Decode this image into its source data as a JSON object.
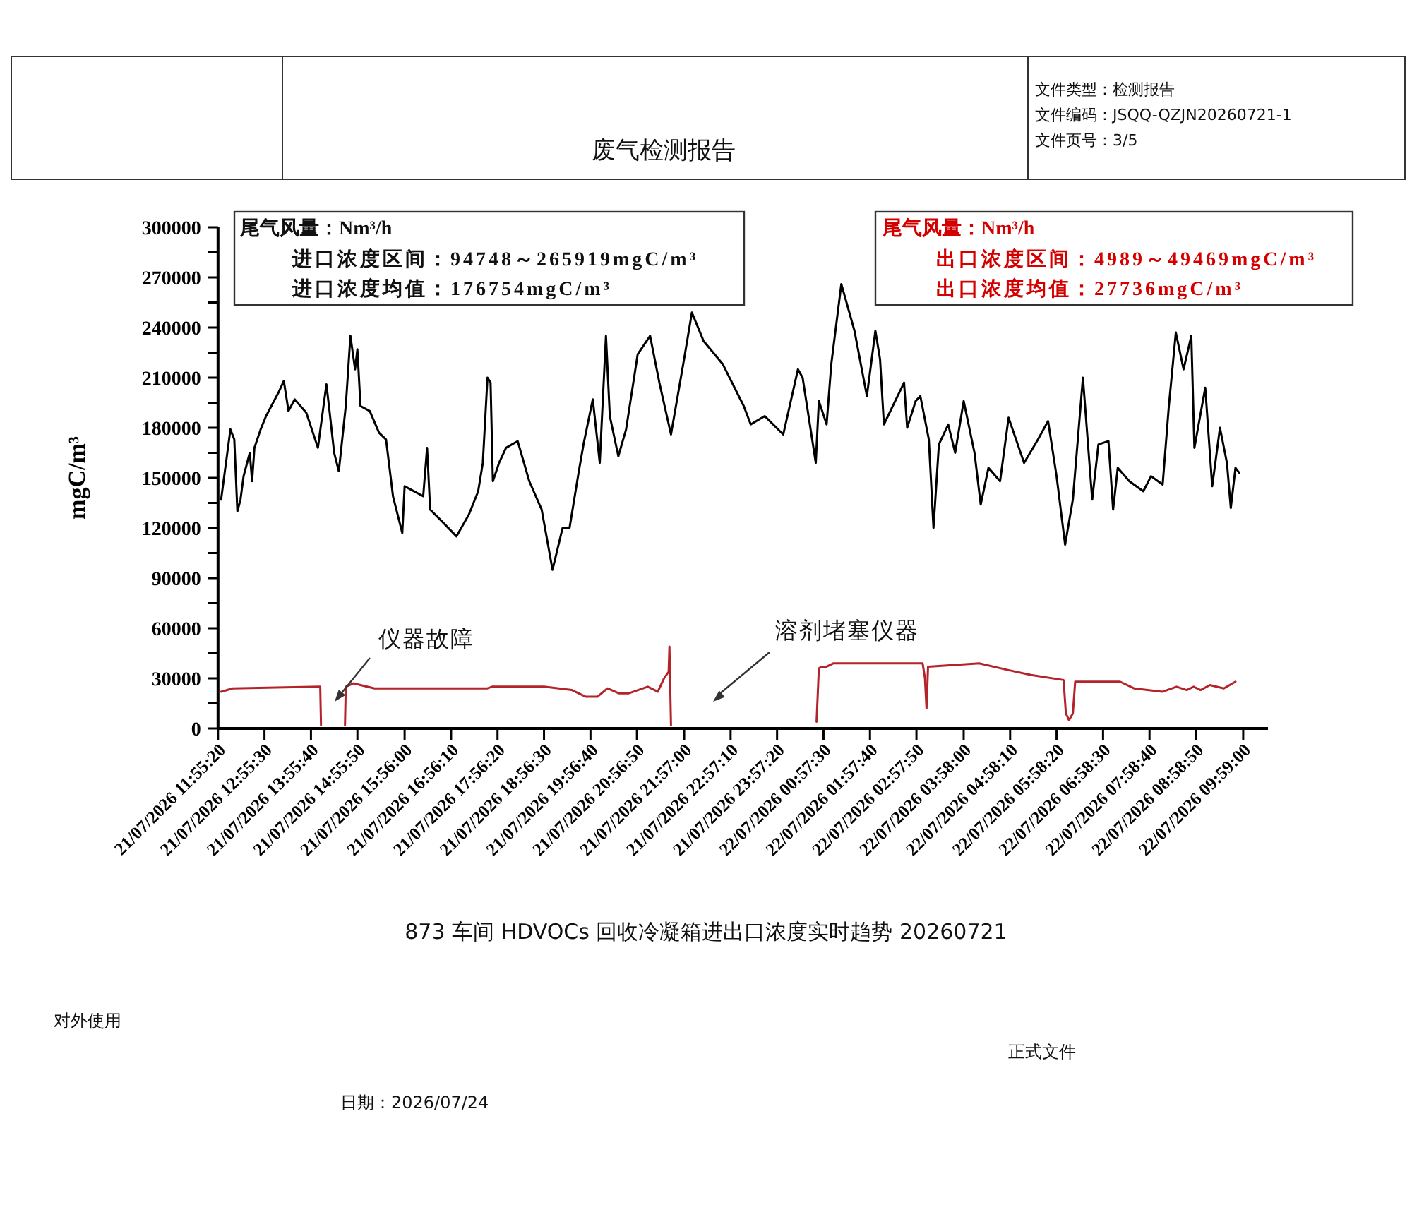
{
  "chart_data": {
    "type": "line",
    "title": "废气检测报告",
    "ylabel": "mgC/m³",
    "xlim": [
      "2026-07-21T11:55",
      "2026-07-22T10:31"
    ],
    "xticks": [
      {
        "value": "2026-07-21T11:55",
        "label": "21/07/2026 11:55:20"
      },
      {
        "value": "2026-07-21T12:55",
        "label": "21/07/2026 12:55:30"
      },
      {
        "value": "2026-07-21T13:55",
        "label": "21/07/2026 13:55:40"
      },
      {
        "value": "2026-07-21T14:55",
        "label": "21/07/2026 14:55:50"
      },
      {
        "value": "2026-07-21T15:56",
        "label": "21/07/2026 15:56:00"
      },
      {
        "value": "2026-07-21T16:56",
        "label": "21/07/2026 16:56:10"
      },
      {
        "value": "2026-07-21T17:56",
        "label": "21/07/2026 17:56:20"
      },
      {
        "value": "2026-07-21T18:56",
        "label": "21/07/2026 18:56:30"
      },
      {
        "value": "2026-07-21T19:56",
        "label": "21/07/2026 19:56:40"
      },
      {
        "value": "2026-07-21T20:56",
        "label": "21/07/2026 20:56:50"
      },
      {
        "value": "2026-07-21T21:57",
        "label": "21/07/2026 21:57:00"
      },
      {
        "value": "2026-07-21T22:57",
        "label": "21/07/2026 22:57:10"
      },
      {
        "value": "2026-07-21T23:57",
        "label": "21/07/2026 23:57:20"
      },
      {
        "value": "2026-07-22T00:57",
        "label": "22/07/2026 00:57:30"
      },
      {
        "value": "2026-07-22T01:57",
        "label": "22/07/2026 01:57:40"
      },
      {
        "value": "2026-07-22T02:57",
        "label": "22/07/2026 02:57:50"
      },
      {
        "value": "2026-07-22T03:58",
        "label": "22/07/2026 03:58:00"
      },
      {
        "value": "2026-07-22T04:58",
        "label": "22/07/2026 04:58:10"
      },
      {
        "value": "2026-07-22T05:58",
        "label": "22/07/2026 05:58:20"
      },
      {
        "value": "2026-07-22T06:58",
        "label": "22/07/2026 06:58:30"
      },
      {
        "value": "2026-07-22T07:58",
        "label": "22/07/2026 07:58:40"
      },
      {
        "value": "2026-07-22T08:58",
        "label": "22/07/2026 08:58:50"
      },
      {
        "value": "2026-07-22T09:59",
        "label": "22/07/2026 09:59:00"
      }
    ],
    "ylim": [
      0,
      300000
    ],
    "yticks": [
      0,
      {
        "value": 15000,
        "label": null
      },
      30000,
      {
        "value": 45000,
        "label": null
      },
      60000,
      {
        "value": 75000,
        "label": null
      },
      90000,
      {
        "value": 105000,
        "label": null
      },
      120000,
      {
        "value": 135000,
        "label": null
      },
      150000,
      {
        "value": 165000,
        "label": null
      },
      180000,
      {
        "value": 195000,
        "label": null
      },
      210000,
      {
        "value": 225000,
        "label": null
      },
      240000,
      {
        "value": 255000,
        "label": null
      },
      270000,
      {
        "value": 285000,
        "label": null
      },
      300000
    ],
    "series": [
      {
        "color": "#000000",
        "x": [
          "2026-07-21T11:59",
          "2026-07-21T12:11",
          "2026-07-21T12:16",
          "2026-07-21T12:20",
          "2026-07-21T12:24",
          "2026-07-21T12:28",
          "2026-07-21T12:36",
          "2026-07-21T12:39",
          "2026-07-21T12:42",
          "2026-07-21T12:50",
          "2026-07-21T12:57",
          "2026-07-21T13:13",
          "2026-07-21T13:20",
          "2026-07-21T13:26",
          "2026-07-21T13:34",
          "2026-07-21T13:49",
          "2026-07-21T14:04",
          "2026-07-21T14:15",
          "2026-07-21T14:19",
          "2026-07-21T14:25",
          "2026-07-21T14:31",
          "2026-07-21T14:40",
          "2026-07-21T14:46",
          "2026-07-21T14:52",
          "2026-07-21T14:55",
          "2026-07-21T14:59",
          "2026-07-21T15:11",
          "2026-07-21T15:23",
          "2026-07-21T15:32",
          "2026-07-21T15:41",
          "2026-07-21T15:53",
          "2026-07-21T15:56",
          "2026-07-21T16:08",
          "2026-07-21T16:20",
          "2026-07-21T16:25",
          "2026-07-21T16:29",
          "2026-07-21T16:42",
          "2026-07-21T17:03",
          "2026-07-21T17:19",
          "2026-07-21T17:31",
          "2026-07-21T17:37",
          "2026-07-21T17:43",
          "2026-07-21T17:47",
          "2026-07-21T17:50",
          "2026-07-21T17:58",
          "2026-07-21T18:07",
          "2026-07-21T18:22",
          "2026-07-21T18:37",
          "2026-07-21T18:53",
          "2026-07-21T19:07",
          "2026-07-21T19:20",
          "2026-07-21T19:29",
          "2026-07-21T19:41",
          "2026-07-21T19:47",
          "2026-07-21T19:59",
          "2026-07-21T20:08",
          "2026-07-21T20:16",
          "2026-07-21T20:21",
          "2026-07-21T20:32",
          "2026-07-21T20:42",
          "2026-07-21T20:57",
          "2026-07-21T21:13",
          "2026-07-21T21:25",
          "2026-07-21T21:40",
          "2026-07-21T21:58",
          "2026-07-21T22:07",
          "2026-07-21T22:22",
          "2026-07-21T22:47",
          "2026-07-21T23:14",
          "2026-07-21T23:23",
          "2026-07-21T23:41",
          "2026-07-22T00:05",
          "2026-07-22T00:24",
          "2026-07-22T00:30",
          "2026-07-22T00:47",
          "2026-07-22T00:51",
          "2026-07-22T01:01",
          "2026-07-22T01:07",
          "2026-07-22T01:20",
          "2026-07-22T01:37",
          "2026-07-22T01:53",
          "2026-07-22T02:04",
          "2026-07-22T02:10",
          "2026-07-22T02:15",
          "2026-07-22T02:41",
          "2026-07-22T02:45",
          "2026-07-22T02:56",
          "2026-07-22T03:02",
          "2026-07-22T03:13",
          "2026-07-22T03:19",
          "2026-07-22T03:26",
          "2026-07-22T03:38",
          "2026-07-22T03:47",
          "2026-07-22T03:58",
          "2026-07-22T04:12",
          "2026-07-22T04:20",
          "2026-07-22T04:30",
          "2026-07-22T04:45",
          "2026-07-22T04:56",
          "2026-07-22T05:16",
          "2026-07-22T05:34",
          "2026-07-22T05:47",
          "2026-07-22T05:58",
          "2026-07-22T06:09",
          "2026-07-22T06:19",
          "2026-07-22T06:32",
          "2026-07-22T06:44",
          "2026-07-22T06:52",
          "2026-07-22T07:05",
          "2026-07-22T07:11",
          "2026-07-22T07:17",
          "2026-07-22T07:32",
          "2026-07-22T07:50",
          "2026-07-22T08:00",
          "2026-07-22T08:15",
          "2026-07-22T08:23",
          "2026-07-22T08:32",
          "2026-07-22T08:42",
          "2026-07-22T08:52",
          "2026-07-22T08:56",
          "2026-07-22T09:10",
          "2026-07-22T09:19",
          "2026-07-22T09:29",
          "2026-07-22T09:38",
          "2026-07-22T09:43",
          "2026-07-22T09:49",
          "2026-07-22T09:54"
        ],
        "values": [
          137000,
          179000,
          173000,
          130000,
          137000,
          151000,
          165000,
          148000,
          168000,
          179000,
          187000,
          201000,
          208000,
          190000,
          197000,
          189000,
          168000,
          206000,
          190000,
          165000,
          154000,
          193000,
          235000,
          215000,
          227000,
          193000,
          190000,
          177000,
          173000,
          139000,
          117000,
          145000,
          142000,
          139000,
          168000,
          131000,
          125000,
          115000,
          128000,
          142000,
          159000,
          210000,
          207000,
          148000,
          159000,
          168000,
          172000,
          148000,
          131000,
          95000,
          120000,
          120000,
          154000,
          170000,
          197000,
          159000,
          235000,
          187000,
          163000,
          179000,
          224000,
          235000,
          207000,
          176000,
          224000,
          249000,
          232000,
          218000,
          193000,
          182000,
          187000,
          176000,
          215000,
          210000,
          159000,
          196000,
          182000,
          218000,
          266000,
          238000,
          199000,
          238000,
          221000,
          182000,
          207000,
          180000,
          196000,
          199000,
          173000,
          120000,
          170000,
          182000,
          165000,
          196000,
          165000,
          134000,
          156000,
          148000,
          186000,
          159000,
          173000,
          184000,
          151000,
          110000,
          137000,
          210000,
          137000,
          170000,
          172000,
          131000,
          156000,
          148000,
          142000,
          151000,
          146000,
          193000,
          237000,
          215000,
          235000,
          168000,
          204000,
          145000,
          180000,
          159000,
          132000,
          156000,
          153000
        ]
      },
      {
        "color": "#b3242a",
        "x": [
          "2026-07-21T11:59",
          "2026-07-21T12:14",
          "2026-07-21T14:07",
          "2026-07-21T14:08",
          null,
          "2026-07-21T14:39",
          "2026-07-21T14:40",
          "2026-07-21T14:50",
          "2026-07-21T15:17",
          "2026-07-21T17:43",
          "2026-07-21T17:49",
          "2026-07-21T18:56",
          "2026-07-21T19:32",
          "2026-07-21T19:50",
          "2026-07-21T20:05",
          "2026-07-21T20:18",
          "2026-07-21T20:33",
          "2026-07-21T20:45",
          "2026-07-21T21:10",
          "2026-07-21T21:23",
          "2026-07-21T21:31",
          "2026-07-21T21:37",
          "2026-07-21T21:38",
          "2026-07-21T21:40",
          null,
          "2026-07-22T00:48",
          "2026-07-22T00:51",
          "2026-07-22T00:55",
          "2026-07-22T01:01",
          "2026-07-22T01:10",
          "2026-07-22T03:05",
          "2026-07-22T03:08",
          "2026-07-22T03:10",
          "2026-07-22T03:12",
          "2026-07-22T04:18",
          "2026-07-22T04:55",
          "2026-07-22T05:25",
          "2026-07-22T06:07",
          "2026-07-22T06:10",
          "2026-07-22T06:14",
          "2026-07-22T06:19",
          "2026-07-22T06:22",
          "2026-07-22T07:20",
          "2026-07-22T07:38",
          "2026-07-22T08:15",
          "2026-07-22T08:33",
          "2026-07-22T08:46",
          "2026-07-22T08:55",
          "2026-07-22T09:04",
          "2026-07-22T09:16",
          "2026-07-22T09:34",
          "2026-07-22T09:49"
        ],
        "values": [
          22000,
          24000,
          25000,
          2000,
          null,
          2000,
          25000,
          27000,
          24000,
          24000,
          25000,
          25000,
          23000,
          19000,
          19000,
          24000,
          21000,
          21000,
          25000,
          22000,
          30000,
          34000,
          49000,
          2000,
          null,
          4000,
          36000,
          37000,
          37000,
          39000,
          39000,
          30000,
          12000,
          37000,
          39000,
          35000,
          32000,
          29000,
          9000,
          5000,
          9000,
          28000,
          28000,
          24000,
          22000,
          25000,
          23000,
          25000,
          23000,
          26000,
          24000,
          28000
        ]
      }
    ],
    "annotations": [
      "文件类型：检测报告",
      "文件编码：JSQQ-QZJN20260721-1",
      "文件页号：3/5",
      "尾气风量：Nm³/h",
      "进口浓度区间：94748～265919mgC/m³",
      "进口浓度均值：176754mgC/m³",
      "尾气风量：Nm³/h",
      "出口浓度区间：4989～49469mgC/m³",
      "出口浓度均值：27736mgC/m³",
      "仪器故障",
      "溶剂堵塞仪器",
      "873 车间 HDVOCs 回收冷凝箱进出口浓度实时趋势 20260721",
      "对外使用",
      "正式文件",
      "日期：2026/07/24"
    ]
  }
}
